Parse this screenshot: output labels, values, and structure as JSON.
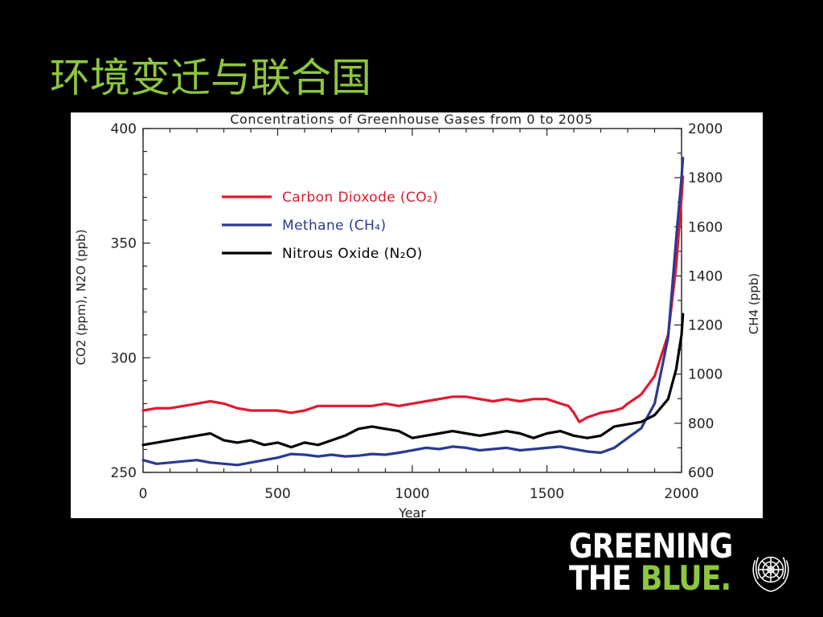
{
  "slide": {
    "title": "环境变迁与联合国",
    "colors": {
      "background": "#000000",
      "title": "#8dc63f",
      "logo_accent": "#8dc63f"
    }
  },
  "logo": {
    "line1": "GREENING",
    "line2_prefix": "THE ",
    "line2_accent": "BLUE.",
    "emblem_icon": "un-emblem-icon"
  },
  "chart_data": {
    "type": "line",
    "title": "Concentrations of Greenhouse Gases from 0 to 2005",
    "xlabel": "Year",
    "ylabel_left": "CO2 (ppm), N2O (ppb)",
    "ylabel_right": "CH4 (ppb)",
    "xlim": [
      0,
      2000
    ],
    "ylim_left": [
      250,
      400
    ],
    "ylim_right": [
      600,
      2000
    ],
    "xticks": [
      0,
      500,
      1000,
      1500,
      2000
    ],
    "yticks_left": [
      250,
      300,
      350,
      400
    ],
    "yticks_right": [
      600,
      800,
      1000,
      1200,
      1400,
      1600,
      1800,
      2000
    ],
    "grid": false,
    "legend_position": "top-left",
    "series": [
      {
        "name": "Carbon Dioxode (CO₂)",
        "axis": "left",
        "color": "#e0192f",
        "points": [
          [
            0,
            277
          ],
          [
            50,
            278
          ],
          [
            100,
            278
          ],
          [
            150,
            279
          ],
          [
            200,
            280
          ],
          [
            250,
            281
          ],
          [
            300,
            280
          ],
          [
            350,
            278
          ],
          [
            400,
            277
          ],
          [
            450,
            277
          ],
          [
            500,
            277
          ],
          [
            550,
            276
          ],
          [
            600,
            277
          ],
          [
            650,
            279
          ],
          [
            700,
            279
          ],
          [
            750,
            279
          ],
          [
            800,
            279
          ],
          [
            850,
            279
          ],
          [
            900,
            280
          ],
          [
            950,
            279
          ],
          [
            1000,
            280
          ],
          [
            1050,
            281
          ],
          [
            1100,
            282
          ],
          [
            1150,
            283
          ],
          [
            1200,
            283
          ],
          [
            1250,
            282
          ],
          [
            1300,
            281
          ],
          [
            1350,
            282
          ],
          [
            1400,
            281
          ],
          [
            1450,
            282
          ],
          [
            1500,
            282
          ],
          [
            1550,
            280
          ],
          [
            1580,
            279
          ],
          [
            1600,
            276
          ],
          [
            1620,
            272
          ],
          [
            1650,
            274
          ],
          [
            1700,
            276
          ],
          [
            1750,
            277
          ],
          [
            1780,
            278
          ],
          [
            1800,
            280
          ],
          [
            1850,
            284
          ],
          [
            1900,
            292
          ],
          [
            1950,
            310
          ],
          [
            1980,
            340
          ],
          [
            2000,
            370
          ],
          [
            2005,
            379
          ]
        ]
      },
      {
        "name": "Methane (CH₄)",
        "axis": "right",
        "color": "#2b3a91",
        "points": [
          [
            0,
            650
          ],
          [
            50,
            635
          ],
          [
            100,
            640
          ],
          [
            150,
            645
          ],
          [
            200,
            650
          ],
          [
            250,
            640
          ],
          [
            300,
            635
          ],
          [
            350,
            630
          ],
          [
            400,
            640
          ],
          [
            450,
            650
          ],
          [
            500,
            660
          ],
          [
            550,
            675
          ],
          [
            600,
            672
          ],
          [
            650,
            665
          ],
          [
            700,
            672
          ],
          [
            750,
            665
          ],
          [
            800,
            668
          ],
          [
            850,
            675
          ],
          [
            900,
            672
          ],
          [
            950,
            680
          ],
          [
            1000,
            690
          ],
          [
            1050,
            700
          ],
          [
            1100,
            695
          ],
          [
            1150,
            705
          ],
          [
            1200,
            700
          ],
          [
            1250,
            690
          ],
          [
            1300,
            695
          ],
          [
            1350,
            700
          ],
          [
            1400,
            690
          ],
          [
            1450,
            695
          ],
          [
            1500,
            700
          ],
          [
            1550,
            705
          ],
          [
            1600,
            695
          ],
          [
            1650,
            685
          ],
          [
            1700,
            680
          ],
          [
            1750,
            700
          ],
          [
            1800,
            740
          ],
          [
            1850,
            780
          ],
          [
            1900,
            880
          ],
          [
            1950,
            1150
          ],
          [
            1980,
            1550
          ],
          [
            2000,
            1800
          ],
          [
            2005,
            1880
          ]
        ]
      },
      {
        "name": "Nitrous Oxide (N₂O)",
        "axis": "left",
        "color": "#000000",
        "points": [
          [
            0,
            262
          ],
          [
            50,
            263
          ],
          [
            100,
            264
          ],
          [
            150,
            265
          ],
          [
            200,
            266
          ],
          [
            250,
            267
          ],
          [
            300,
            264
          ],
          [
            350,
            263
          ],
          [
            400,
            264
          ],
          [
            450,
            262
          ],
          [
            500,
            263
          ],
          [
            550,
            261
          ],
          [
            600,
            263
          ],
          [
            650,
            262
          ],
          [
            700,
            264
          ],
          [
            750,
            266
          ],
          [
            800,
            269
          ],
          [
            850,
            270
          ],
          [
            900,
            269
          ],
          [
            950,
            268
          ],
          [
            1000,
            265
          ],
          [
            1050,
            266
          ],
          [
            1100,
            267
          ],
          [
            1150,
            268
          ],
          [
            1200,
            267
          ],
          [
            1250,
            266
          ],
          [
            1300,
            267
          ],
          [
            1350,
            268
          ],
          [
            1400,
            267
          ],
          [
            1450,
            265
          ],
          [
            1500,
            267
          ],
          [
            1550,
            268
          ],
          [
            1600,
            266
          ],
          [
            1650,
            265
          ],
          [
            1700,
            266
          ],
          [
            1750,
            270
          ],
          [
            1800,
            271
          ],
          [
            1850,
            272
          ],
          [
            1900,
            275
          ],
          [
            1950,
            282
          ],
          [
            1980,
            295
          ],
          [
            2000,
            310
          ],
          [
            2005,
            319
          ]
        ]
      }
    ]
  }
}
